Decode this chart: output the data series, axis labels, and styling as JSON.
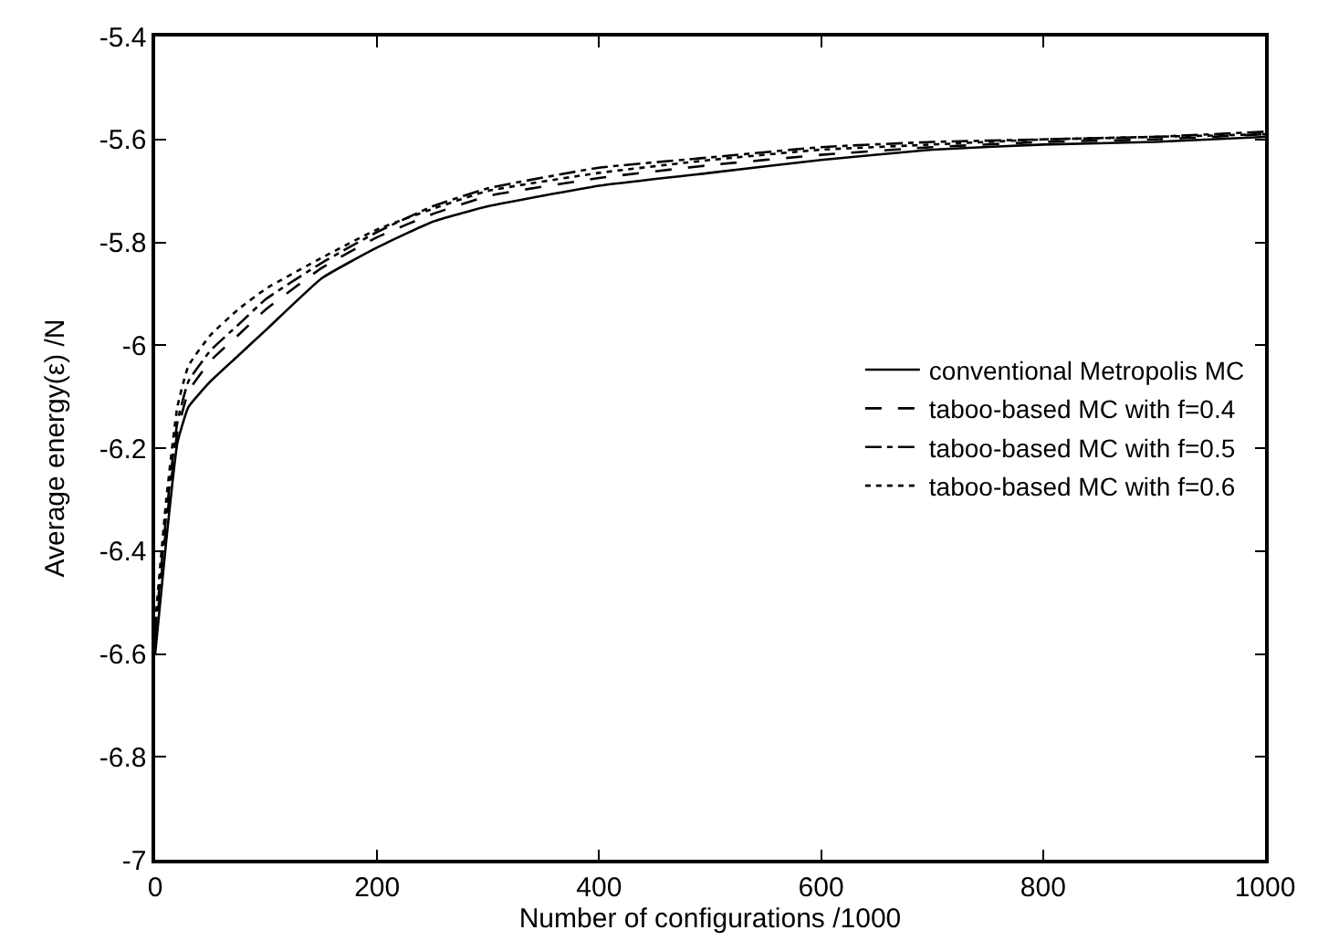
{
  "chart_data": {
    "type": "line",
    "xlabel": "Number of configurations /1000",
    "ylabel": "Average energy(ε) /N",
    "x": [
      0,
      10,
      20,
      30,
      50,
      75,
      100,
      150,
      200,
      250,
      300,
      400,
      500,
      600,
      700,
      800,
      900,
      1000
    ],
    "series": [
      {
        "name": "conventional Metropolis MC",
        "color": "#000000",
        "line_style": "solid",
        "values": [
          -6.6,
          -6.38,
          -6.19,
          -6.12,
          -6.07,
          -6.02,
          -5.97,
          -5.87,
          -5.81,
          -5.76,
          -5.73,
          -5.69,
          -5.665,
          -5.64,
          -5.62,
          -5.61,
          -5.605,
          -5.595
        ]
      },
      {
        "name": "taboo-based MC with f=0.4",
        "color": "#000000",
        "line_style": "dashed",
        "values": [
          -6.58,
          -6.35,
          -6.17,
          -6.09,
          -6.03,
          -5.98,
          -5.93,
          -5.85,
          -5.79,
          -5.745,
          -5.71,
          -5.675,
          -5.65,
          -5.63,
          -5.615,
          -5.605,
          -5.6,
          -5.59
        ]
      },
      {
        "name": "taboo-based MC with f=0.5",
        "color": "#000000",
        "line_style": "dashdot",
        "values": [
          -6.56,
          -6.33,
          -6.15,
          -6.07,
          -6.01,
          -5.96,
          -5.91,
          -5.84,
          -5.78,
          -5.73,
          -5.695,
          -5.655,
          -5.635,
          -5.615,
          -5.605,
          -5.6,
          -5.595,
          -5.585
        ]
      },
      {
        "name": "taboo-based MC with f=0.6",
        "color": "#000000",
        "line_style": "dotted",
        "values": [
          -6.54,
          -6.3,
          -6.12,
          -6.04,
          -5.98,
          -5.93,
          -5.89,
          -5.83,
          -5.775,
          -5.735,
          -5.7,
          -5.665,
          -5.64,
          -5.62,
          -5.61,
          -5.6,
          -5.595,
          -5.59
        ]
      }
    ],
    "xlim": [
      0,
      1000
    ],
    "xticks": [
      0,
      200,
      400,
      600,
      800,
      1000
    ],
    "ylim": [
      -7,
      -5.4
    ],
    "yticks": [
      -7,
      -6.8,
      -6.6,
      -6.4,
      -6.2,
      -6,
      -5.8,
      -5.6,
      -5.4
    ],
    "legend": "right",
    "marker": "none"
  }
}
